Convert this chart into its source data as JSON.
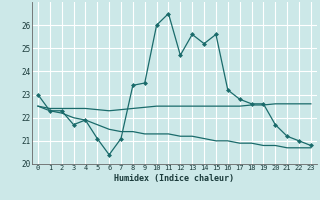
{
  "xlabel": "Humidex (Indice chaleur)",
  "bg_color": "#cce8e8",
  "grid_color": "#ffffff",
  "line_color": "#1a6b6b",
  "xlim": [
    -0.5,
    23.5
  ],
  "ylim": [
    20,
    27
  ],
  "yticks": [
    20,
    21,
    22,
    23,
    24,
    25,
    26
  ],
  "xticks": [
    0,
    1,
    2,
    3,
    4,
    5,
    6,
    7,
    8,
    9,
    10,
    11,
    12,
    13,
    14,
    15,
    16,
    17,
    18,
    19,
    20,
    21,
    22,
    23
  ],
  "line1": [
    23.0,
    22.3,
    22.3,
    21.7,
    21.9,
    21.1,
    20.4,
    21.1,
    23.4,
    23.5,
    26.0,
    26.5,
    24.7,
    25.6,
    25.2,
    25.6,
    23.2,
    22.8,
    22.6,
    22.6,
    21.7,
    21.2,
    21.0,
    20.8
  ],
  "line2": [
    22.5,
    22.4,
    22.4,
    22.4,
    22.4,
    22.35,
    22.3,
    22.35,
    22.4,
    22.45,
    22.5,
    22.5,
    22.5,
    22.5,
    22.5,
    22.5,
    22.5,
    22.5,
    22.55,
    22.55,
    22.6,
    22.6,
    22.6,
    22.6
  ],
  "line3": [
    22.5,
    22.3,
    22.2,
    22.0,
    21.9,
    21.7,
    21.5,
    21.4,
    21.4,
    21.3,
    21.3,
    21.3,
    21.2,
    21.2,
    21.1,
    21.0,
    21.0,
    20.9,
    20.9,
    20.8,
    20.8,
    20.7,
    20.7,
    20.7
  ]
}
